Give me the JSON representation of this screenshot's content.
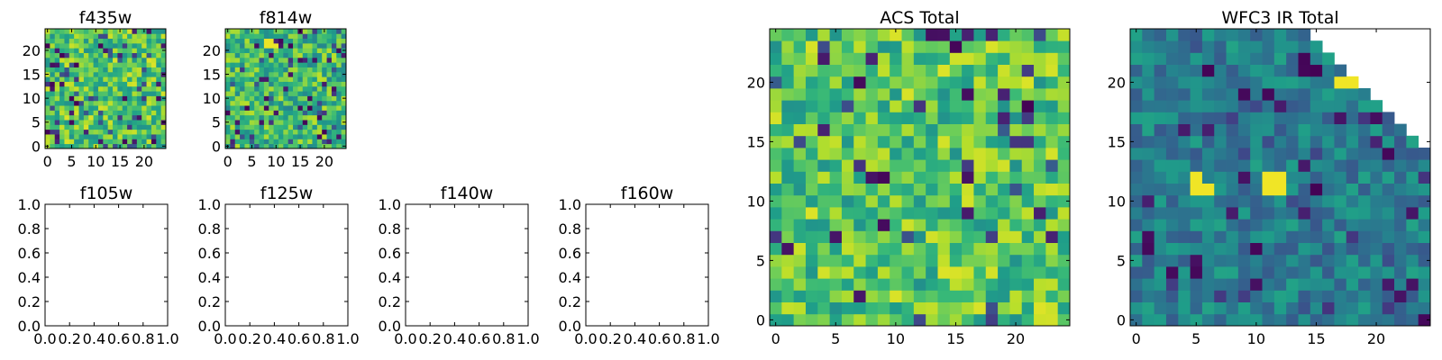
{
  "chart_data": [
    {
      "id": "f435w",
      "type": "heatmap",
      "title": "f435w",
      "xlim": [
        -0.5,
        24.5
      ],
      "ylim": [
        -0.5,
        24.5
      ],
      "xticks": [
        0,
        5,
        10,
        15,
        20
      ],
      "yticks": [
        0,
        5,
        10,
        15,
        20
      ],
      "colormap": "viridis",
      "grid_size": 25,
      "value_range": [
        0,
        1
      ],
      "value_distribution": "noise, mostly green-yellow (0.5-0.95) with scattered dark cells",
      "seed": 435
    },
    {
      "id": "f814w",
      "type": "heatmap",
      "title": "f814w",
      "xlim": [
        -0.5,
        24.5
      ],
      "ylim": [
        -0.5,
        24.5
      ],
      "xticks": [
        0,
        5,
        10,
        15,
        20
      ],
      "yticks": [
        0,
        5,
        10,
        15,
        20
      ],
      "colormap": "viridis",
      "grid_size": 25,
      "value_range": [
        0,
        1
      ],
      "value_distribution": "noise, mostly green (0.45-0.9) with scattered dark cells and a bright patch near x=8-10, y=20-22",
      "seed": 814
    },
    {
      "id": "f105w",
      "type": "empty",
      "title": "f105w",
      "xlim": [
        0,
        1
      ],
      "ylim": [
        0,
        1
      ],
      "xticks": [
        "0.0",
        "0.2",
        "0.4",
        "0.6",
        "0.8",
        "1.0"
      ],
      "yticks": [
        "0.0",
        "0.2",
        "0.4",
        "0.6",
        "0.8",
        "1.0"
      ]
    },
    {
      "id": "f125w",
      "type": "empty",
      "title": "f125w",
      "xlim": [
        0,
        1
      ],
      "ylim": [
        0,
        1
      ],
      "xticks": [
        "0.0",
        "0.2",
        "0.4",
        "0.6",
        "0.8",
        "1.0"
      ],
      "yticks": [
        "0.0",
        "0.2",
        "0.4",
        "0.6",
        "0.8",
        "1.0"
      ]
    },
    {
      "id": "f140w",
      "type": "empty",
      "title": "f140w",
      "xlim": [
        0,
        1
      ],
      "ylim": [
        0,
        1
      ],
      "xticks": [
        "0.0",
        "0.2",
        "0.4",
        "0.6",
        "0.8",
        "1.0"
      ],
      "yticks": [
        "0.0",
        "0.2",
        "0.4",
        "0.6",
        "0.8",
        "1.0"
      ]
    },
    {
      "id": "f160w",
      "type": "empty",
      "title": "f160w",
      "xlim": [
        0,
        1
      ],
      "ylim": [
        0,
        1
      ],
      "xticks": [
        "0.0",
        "0.2",
        "0.4",
        "0.6",
        "0.8",
        "1.0"
      ],
      "yticks": [
        "0.0",
        "0.2",
        "0.4",
        "0.6",
        "0.8",
        "1.0"
      ]
    },
    {
      "id": "acs-total",
      "type": "heatmap",
      "title": "ACS Total",
      "xlim": [
        -0.5,
        24.5
      ],
      "ylim": [
        -0.5,
        24.5
      ],
      "xticks": [
        0,
        5,
        10,
        15,
        20
      ],
      "yticks": [
        0,
        5,
        10,
        15,
        20
      ],
      "colormap": "viridis",
      "grid_size": 25,
      "value_range": [
        0,
        1
      ],
      "value_distribution": "noise, mostly green-yellow (0.5-0.95) with scattered dark purple cells",
      "seed": 1001
    },
    {
      "id": "wfc3-ir-total",
      "type": "heatmap",
      "title": "WFC3 IR Total",
      "xlim": [
        -0.5,
        24.5
      ],
      "ylim": [
        -0.5,
        24.5
      ],
      "xticks": [
        0,
        5,
        10,
        15,
        20
      ],
      "yticks": [
        0,
        5,
        10,
        15,
        20
      ],
      "colormap": "viridis",
      "grid_size": 25,
      "value_range": [
        0,
        1
      ],
      "value_distribution": "noise, mostly teal-blue (0.3-0.55) with scattered dark cells; upper-right triangle empty (no data)",
      "bright_cells": [
        [
          5,
          11
        ],
        [
          5,
          12
        ],
        [
          6,
          11
        ],
        [
          11,
          11
        ],
        [
          11,
          12
        ],
        [
          12,
          11
        ],
        [
          12,
          12
        ],
        [
          17,
          20
        ],
        [
          18,
          20
        ]
      ],
      "empty_region": "upper-right triangle where y > 38 - x (x >= 14)",
      "seed": 2002
    }
  ]
}
